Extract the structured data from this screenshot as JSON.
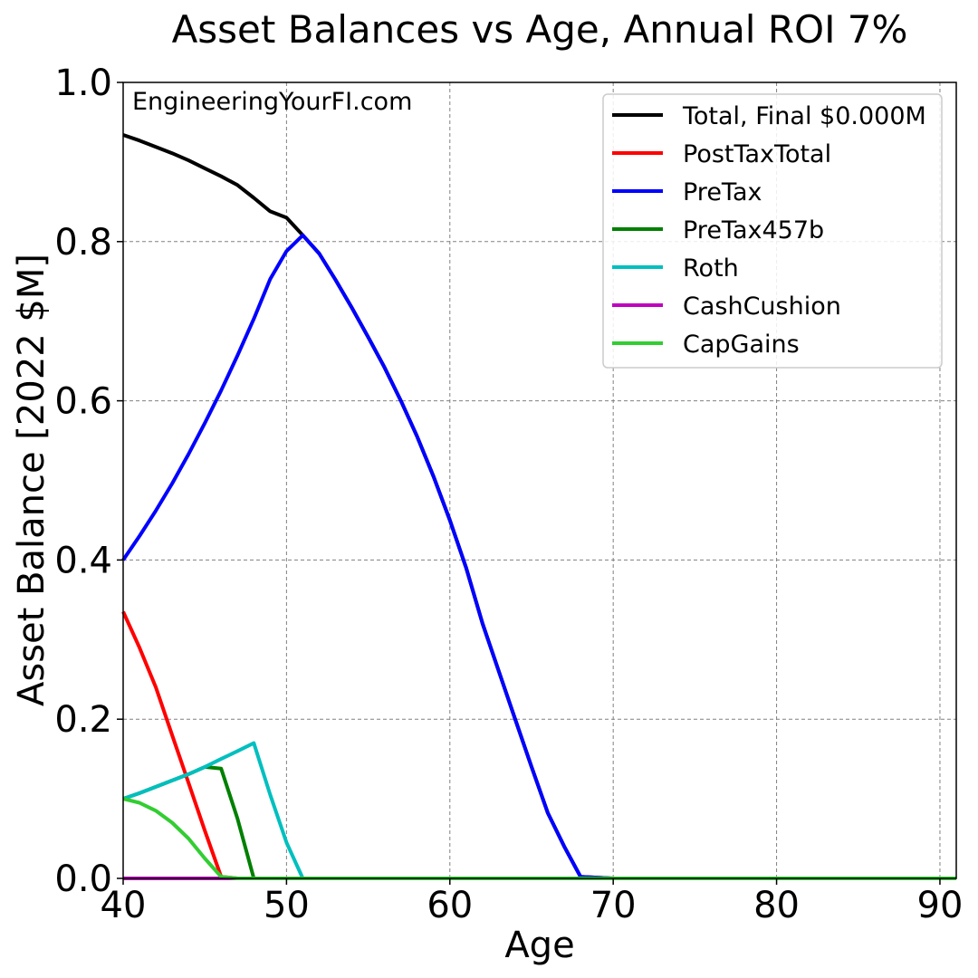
{
  "chart_data": {
    "type": "line",
    "title": "Asset Balances vs Age, Annual ROI 7%",
    "xlabel": "Age",
    "ylabel": "Asset Balance [2022 $M]",
    "xlim": [
      40,
      91
    ],
    "ylim": [
      0,
      1
    ],
    "xticks": [
      40,
      50,
      60,
      70,
      80,
      90
    ],
    "xtick_labels": [
      "40",
      "50",
      "60",
      "70",
      "80",
      "90"
    ],
    "yticks": [
      0,
      0.2,
      0.4,
      0.6,
      0.8,
      1.0
    ],
    "ytick_labels": [
      "0.0",
      "0.2",
      "0.4",
      "0.6",
      "0.8",
      "1.0"
    ],
    "grid": true,
    "legend_position": "top-right",
    "annotation": "EngineeringYourFI.com",
    "series": [
      {
        "name": "Total, Final $0.000M",
        "color": "#000000",
        "points": [
          [
            40,
            0.934
          ],
          [
            41,
            0.927
          ],
          [
            42,
            0.919
          ],
          [
            43,
            0.911
          ],
          [
            44,
            0.902
          ],
          [
            45,
            0.892
          ],
          [
            46,
            0.882
          ],
          [
            47,
            0.871
          ],
          [
            48,
            0.855
          ],
          [
            49,
            0.838
          ],
          [
            50,
            0.83
          ],
          [
            51,
            0.808
          ],
          [
            52,
            0.785
          ],
          [
            53,
            0.752
          ],
          [
            54,
            0.717
          ],
          [
            55,
            0.68
          ],
          [
            56,
            0.642
          ],
          [
            57,
            0.6
          ],
          [
            58,
            0.555
          ],
          [
            59,
            0.505
          ],
          [
            60,
            0.45
          ],
          [
            61,
            0.39
          ],
          [
            62,
            0.32
          ],
          [
            63,
            0.26
          ],
          [
            64,
            0.2
          ],
          [
            65,
            0.14
          ],
          [
            66,
            0.082
          ],
          [
            67,
            0.04
          ],
          [
            68,
            0.002
          ],
          [
            69,
            0.001
          ],
          [
            70,
            0
          ],
          [
            91,
            0
          ]
        ]
      },
      {
        "name": "PostTaxTotal",
        "color": "#ff0000",
        "points": [
          [
            40,
            0.335
          ],
          [
            41,
            0.29
          ],
          [
            42,
            0.24
          ],
          [
            43,
            0.18
          ],
          [
            44,
            0.12
          ],
          [
            45,
            0.06
          ],
          [
            46,
            0.002
          ],
          [
            47,
            0
          ],
          [
            91,
            0
          ]
        ]
      },
      {
        "name": "PreTax",
        "color": "#0000ff",
        "points": [
          [
            40,
            0.4
          ],
          [
            41,
            0.43
          ],
          [
            42,
            0.462
          ],
          [
            43,
            0.496
          ],
          [
            44,
            0.533
          ],
          [
            45,
            0.572
          ],
          [
            46,
            0.613
          ],
          [
            47,
            0.657
          ],
          [
            48,
            0.703
          ],
          [
            49,
            0.753
          ],
          [
            50,
            0.788
          ],
          [
            51,
            0.808
          ],
          [
            52,
            0.785
          ],
          [
            53,
            0.752
          ],
          [
            54,
            0.717
          ],
          [
            55,
            0.68
          ],
          [
            56,
            0.642
          ],
          [
            57,
            0.6
          ],
          [
            58,
            0.555
          ],
          [
            59,
            0.505
          ],
          [
            60,
            0.45
          ],
          [
            61,
            0.39
          ],
          [
            62,
            0.32
          ],
          [
            63,
            0.26
          ],
          [
            64,
            0.2
          ],
          [
            65,
            0.14
          ],
          [
            66,
            0.082
          ],
          [
            67,
            0.04
          ],
          [
            68,
            0.002
          ],
          [
            69,
            0.001
          ],
          [
            70,
            0
          ],
          [
            91,
            0
          ]
        ]
      },
      {
        "name": "PreTax457b",
        "color": "#008000",
        "points": [
          [
            40,
            0.1
          ],
          [
            41,
            0.107
          ],
          [
            42,
            0.115
          ],
          [
            43,
            0.123
          ],
          [
            44,
            0.131
          ],
          [
            45,
            0.14
          ],
          [
            46,
            0.138
          ],
          [
            47,
            0.075
          ],
          [
            48,
            0
          ],
          [
            91,
            0
          ]
        ]
      },
      {
        "name": "Roth",
        "color": "#00bfbf",
        "points": [
          [
            40,
            0.1
          ],
          [
            41,
            0.107
          ],
          [
            42,
            0.115
          ],
          [
            43,
            0.123
          ],
          [
            44,
            0.131
          ],
          [
            45,
            0.14
          ],
          [
            46,
            0.15
          ],
          [
            47,
            0.16
          ],
          [
            48,
            0.17
          ],
          [
            49,
            0.105
          ],
          [
            50,
            0.045
          ],
          [
            51,
            0
          ],
          [
            91,
            0
          ]
        ]
      },
      {
        "name": "CashCushion",
        "color": "#bf00bf",
        "points": [
          [
            40,
            0
          ],
          [
            91,
            0
          ]
        ]
      },
      {
        "name": "CapGains",
        "color": "#32cd32",
        "points": [
          [
            40,
            0.1
          ],
          [
            41,
            0.095
          ],
          [
            42,
            0.085
          ],
          [
            43,
            0.07
          ],
          [
            44,
            0.05
          ],
          [
            45,
            0.025
          ],
          [
            46,
            0.002
          ],
          [
            47,
            0
          ],
          [
            91,
            0
          ]
        ]
      }
    ]
  }
}
